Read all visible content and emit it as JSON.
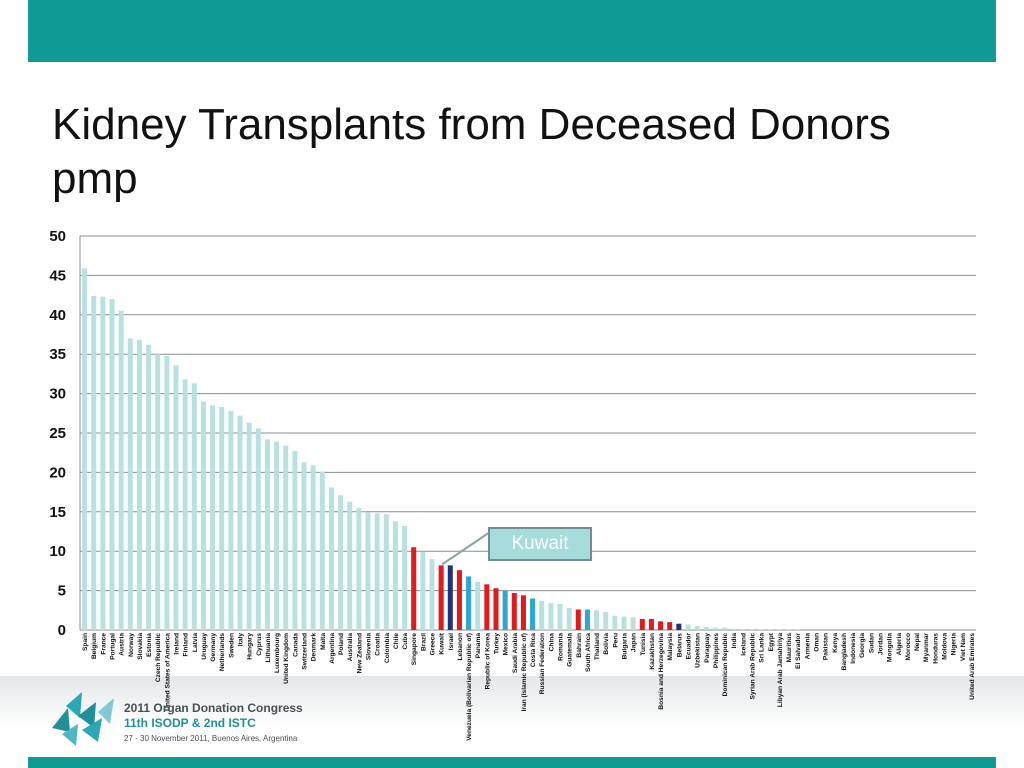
{
  "title": "Kidney Transplants from Deceased Donors pmp",
  "callout_label": "Kuwait",
  "footer": {
    "line1": "2011 Organ Donation Congress",
    "line2": "11th ISODP & 2nd ISTC",
    "line3": "27 - 30 November 2011, Buenos Aires, Argentina"
  },
  "colors": {
    "bar_default": "#b9e1e1",
    "bar_red": "#e01b1b",
    "bar_blue": "#2ba7d9",
    "bar_navy": "#26307a",
    "brand": "#0f9b94"
  },
  "chart_data": {
    "type": "bar",
    "ylim": [
      0,
      50
    ],
    "yticks": [
      "0",
      "5",
      "10",
      "15",
      "20",
      "25",
      "30",
      "35",
      "40",
      "45",
      "50"
    ],
    "grid": true,
    "categories": [
      "Spain",
      "Belgium",
      "France",
      "Portugal",
      "Austria",
      "Norway",
      "Slovakia",
      "Estonia",
      "Czech Republic",
      "United States of America",
      "Ireland",
      "Finland",
      "Latvia",
      "Uruguay",
      "Germany",
      "Netherlands",
      "Sweden",
      "Italy",
      "Hungary",
      "Cyprus",
      "Lithuania",
      "Luxembourg",
      "United Kingdom",
      "Canada",
      "Switzerland",
      "Denmark",
      "Malta",
      "Argentina",
      "Poland",
      "Australia",
      "New Zealand",
      "Slovenia",
      "Croatia",
      "Colombia",
      "Chile",
      "Cuba",
      "Singapore",
      "Brazil",
      "Greece",
      "Kuwait",
      "Israel",
      "Lebanon",
      "Venezuela (Bolivarian Republic of)",
      "Panama",
      "Republic of Korea",
      "Turkey",
      "Mexico",
      "Saudi Arabia",
      "Iran (Islamic Republic of)",
      "Costa Rica",
      "Russian Federation",
      "China",
      "Romania",
      "Guatemala",
      "Bahrain",
      "South Africa",
      "Thailand",
      "Bolivia",
      "Peru",
      "Bulgaria",
      "Japan",
      "Tunisia",
      "Kazakhstan",
      "Bosnia and Herzegovina",
      "Malaysia",
      "Belarus",
      "Ecuador",
      "Uzbekistan",
      "Paraguay",
      "Philippines",
      "Dominican Republic",
      "India",
      "Iceland",
      "Syrian Arab Republic",
      "Sri Lanka",
      "Egypt",
      "Libyan Arab Jamahiriya",
      "Mauritius",
      "El Salvador",
      "Armenia",
      "Oman",
      "Pakistan",
      "Kenya",
      "Bangladesh",
      "Indonesia",
      "Georgia",
      "Sudan",
      "Jordan",
      "Mongolia",
      "Algeria",
      "Morocco",
      "Nepal",
      "Myanmar",
      "Honduras",
      "Moldova",
      "Nigeria",
      "Viet Nam",
      "United Arab Emirates"
    ],
    "values": [
      45.9,
      42.4,
      42.3,
      42.0,
      40.5,
      37.0,
      36.8,
      36.2,
      35.0,
      34.8,
      33.6,
      31.8,
      31.3,
      29.0,
      28.5,
      28.3,
      27.8,
      27.2,
      26.3,
      25.6,
      24.2,
      23.9,
      23.4,
      22.7,
      21.3,
      20.9,
      20.1,
      18.1,
      17.1,
      16.3,
      15.5,
      14.9,
      14.8,
      14.7,
      13.8,
      13.2,
      10.5,
      9.9,
      9.0,
      8.2,
      8.2,
      7.6,
      6.8,
      6.1,
      5.8,
      5.3,
      5.0,
      4.7,
      4.4,
      4.0,
      3.7,
      3.4,
      3.3,
      2.8,
      2.6,
      2.6,
      2.5,
      2.3,
      1.8,
      1.7,
      1.6,
      1.4,
      1.4,
      1.1,
      1.0,
      0.8,
      0.7,
      0.5,
      0.4,
      0.3,
      0.3,
      0.15,
      0.15,
      0.1,
      0.1,
      0.1,
      0.1,
      0.1,
      0.05,
      0,
      0,
      0,
      0,
      0,
      0,
      0,
      0,
      0,
      0,
      0,
      0,
      0,
      0,
      0,
      0,
      0,
      0,
      0
    ],
    "highlight_red": [
      "Singapore",
      "Kuwait",
      "Lebanon",
      "Republic of Korea",
      "Turkey",
      "Saudi Arabia",
      "Iran (Islamic Republic of)",
      "Bahrain",
      "Tunisia",
      "Kazakhstan",
      "Bosnia and Herzegovina",
      "Malaysia"
    ],
    "highlight_blue": [
      "Venezuela (Bolivarian Republic of)",
      "Mexico",
      "Costa Rica",
      "South Africa"
    ],
    "highlight_navy": [
      "Israel",
      "Belarus"
    ]
  }
}
